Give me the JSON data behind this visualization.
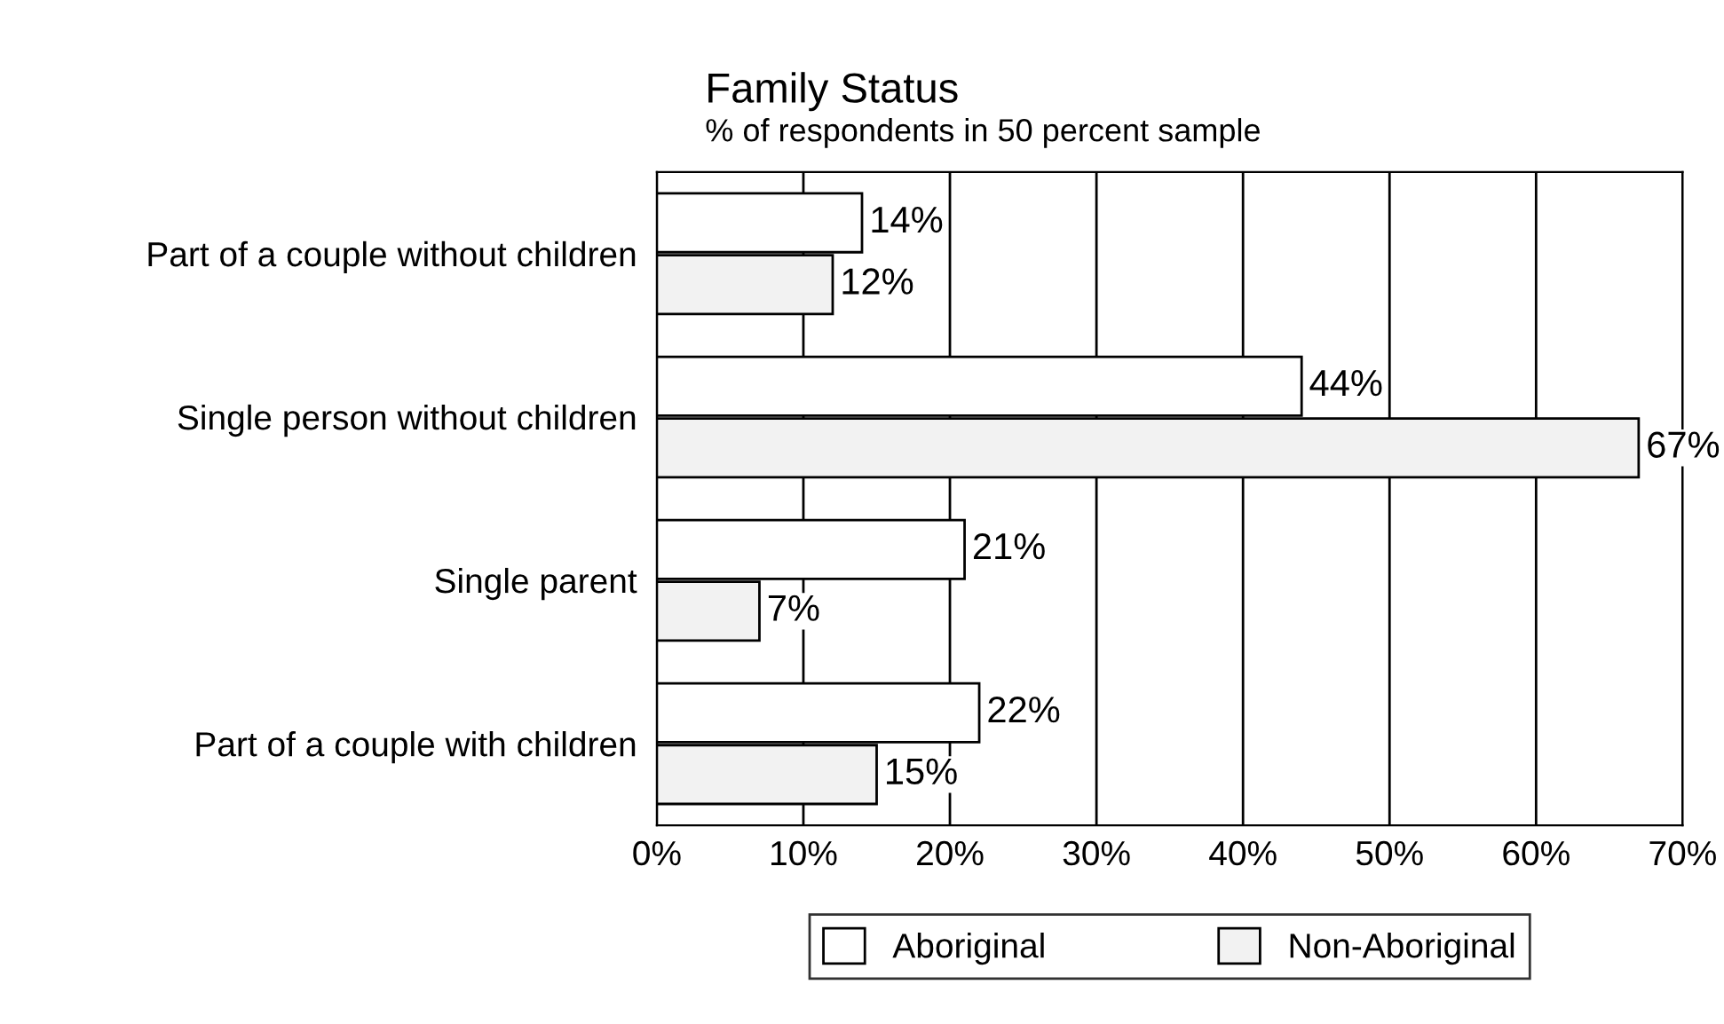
{
  "chart_data": {
    "type": "bar",
    "orientation": "horizontal",
    "title": "Family Status",
    "subtitle": "% of respondents in 50 percent sample",
    "categories": [
      "Part of a couple without children",
      "Single person without children",
      "Single parent",
      "Part of a couple with children"
    ],
    "series": [
      {
        "name": "Aboriginal",
        "color": "#ffffff",
        "values": [
          14,
          44,
          21,
          22
        ],
        "value_labels": [
          "14%",
          "44%",
          "21%",
          "22%"
        ]
      },
      {
        "name": "Non-Aboriginal",
        "color": "#f2f2f2",
        "values": [
          12,
          67,
          7,
          15
        ],
        "value_labels": [
          "12%",
          "67%",
          "7%",
          "15%"
        ]
      }
    ],
    "xlim": [
      0,
      70
    ],
    "xticks": [
      {
        "value": 0,
        "label": "0%"
      },
      {
        "value": 10,
        "label": "10%"
      },
      {
        "value": 20,
        "label": "20%"
      },
      {
        "value": 30,
        "label": "30%"
      },
      {
        "value": 40,
        "label": "40%"
      },
      {
        "value": 50,
        "label": "50%"
      },
      {
        "value": 60,
        "label": "60%"
      },
      {
        "value": 70,
        "label": "70%"
      }
    ],
    "grid": "x",
    "legend": "bottom"
  }
}
